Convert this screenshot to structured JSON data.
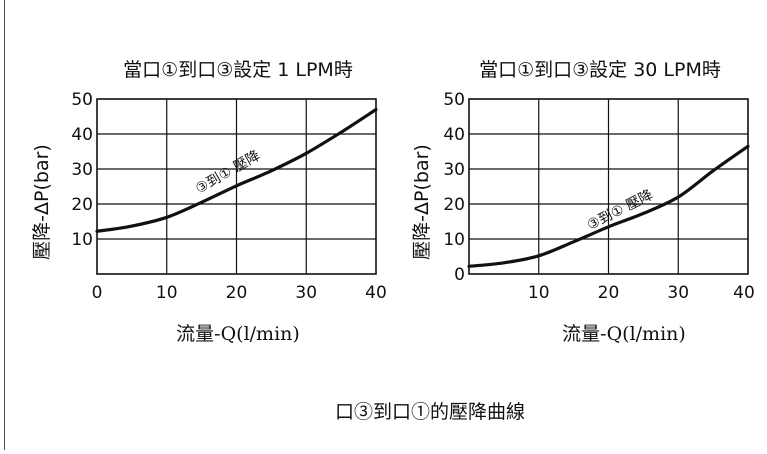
{
  "caption": "口③到口①的壓降曲線",
  "chart_data": [
    {
      "type": "line",
      "title": "當口①到口③設定 1 LPM時",
      "xlabel": "流量-Q(l/min)",
      "ylabel": "壓降-ΔP(bar)",
      "xlim": [
        0,
        40
      ],
      "ylim": [
        0,
        50
      ],
      "x_ticks": [
        "0",
        "10",
        "20",
        "30",
        "40"
      ],
      "y_ticks": [
        "10",
        "20",
        "30",
        "40",
        "50"
      ],
      "grid": true,
      "series": [
        {
          "name": "③到① 壓降",
          "x": [
            0,
            5,
            10,
            15,
            20,
            25,
            30,
            35,
            40
          ],
          "y": [
            12.2,
            13.7,
            16.2,
            20.5,
            25.2,
            29.5,
            34.5,
            40.5,
            47
          ]
        }
      ]
    },
    {
      "type": "line",
      "title": "當口①到口③設定 30 LPM時",
      "xlabel": "流量-Q(l/min)",
      "ylabel": "壓降-ΔP(bar)",
      "xlim": [
        0,
        40
      ],
      "ylim": [
        0,
        50
      ],
      "x_ticks": [
        "0",
        "10",
        "20",
        "30",
        "40"
      ],
      "y_ticks": [
        "10",
        "20",
        "30",
        "40",
        "50"
      ],
      "grid": true,
      "series": [
        {
          "name": "③到① 壓降",
          "x": [
            0,
            5,
            10,
            15,
            20,
            25,
            30,
            35,
            40
          ],
          "y": [
            2.2,
            3.2,
            5.2,
            9.2,
            13.5,
            17.3,
            22,
            29.5,
            36.5
          ]
        }
      ]
    }
  ]
}
